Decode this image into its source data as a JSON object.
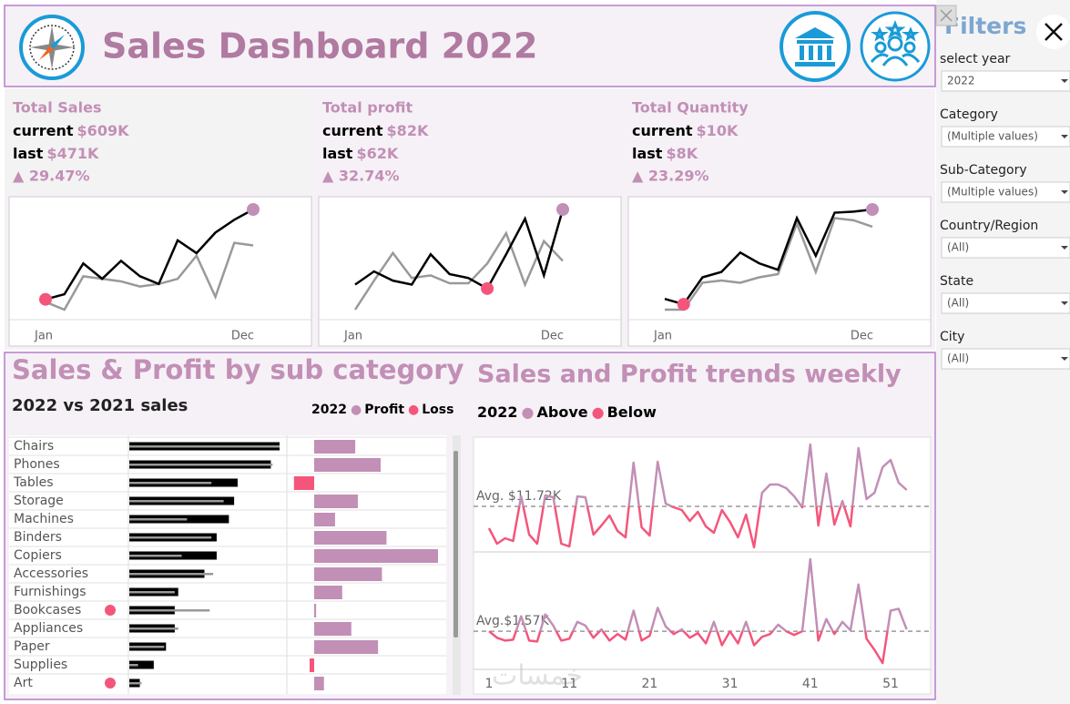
{
  "header": {
    "title": "Sales Dashboard 2022"
  },
  "kpis": [
    {
      "title": "Total Sales",
      "current_label": "current",
      "current": "$609K",
      "last_label": "last",
      "last": "$471K",
      "change": "▲ 29.47%",
      "start": "Jan",
      "end": "Dec",
      "current_values": [
        32,
        34,
        46,
        40,
        47,
        41,
        38,
        55,
        50,
        58,
        63,
        67
      ],
      "last_values": [
        31,
        28,
        41,
        40,
        39,
        37,
        38,
        40,
        49,
        33,
        54,
        53
      ]
    },
    {
      "title": "Total profit",
      "current_label": "current",
      "current": "$82K",
      "last_label": "last",
      "last": "$62K",
      "change": "▲ 32.74%",
      "start": "Jan",
      "end": "Dec",
      "current_values": [
        4.5,
        5.5,
        4.8,
        4.5,
        6.8,
        5.3,
        5.0,
        4.2,
        6.8,
        9.5,
        5.2,
        10.2
      ],
      "last_values": [
        2.6,
        4.8,
        6.9,
        5.0,
        5.2,
        4.6,
        4.6,
        6.1,
        8.4,
        4.5,
        7.8,
        6.3
      ]
    },
    {
      "title": "Total Quantity",
      "current_label": "current",
      "current": "$10K",
      "last_label": "last",
      "last": "$8K",
      "change": "▲ 23.29%",
      "start": "Jan",
      "end": "Dec",
      "current_values": [
        0.55,
        0.5,
        0.75,
        0.8,
        0.98,
        0.88,
        0.82,
        1.3,
        0.95,
        1.35,
        1.36,
        1.38
      ],
      "last_values": [
        0.45,
        0.45,
        0.7,
        0.72,
        0.7,
        0.75,
        0.78,
        1.25,
        0.8,
        1.3,
        1.28,
        1.22
      ]
    }
  ],
  "subcategory": {
    "title": "Sales & Profit by sub category",
    "subtitle": "2022 vs 2021 sales",
    "legend": {
      "year": "2022",
      "profit": "Profit",
      "loss": "Loss"
    },
    "profit_color": "#c28fb6",
    "loss_color": "#f4567b",
    "categories": [
      "Chairs",
      "Phones",
      "Tables",
      "Storage",
      "Machines",
      "Binders",
      "Copiers",
      "Accessories",
      "Furnishings",
      "Bookcases",
      "Appliances",
      "Paper",
      "Supplies",
      "Art"
    ],
    "sales_2022": [
      86,
      81,
      62,
      60,
      57,
      50,
      50,
      43,
      28,
      26,
      26,
      21,
      14,
      6
    ],
    "sales_2021": [
      86,
      82,
      47,
      54,
      33,
      47,
      30,
      48,
      26,
      46,
      28,
      20,
      5,
      7
    ],
    "profit": [
      6.3,
      10.2,
      -3.1,
      6.7,
      3.2,
      11.1,
      19.0,
      10.4,
      4.3,
      0.3,
      5.7,
      9.8,
      -0.7,
      1.5
    ],
    "flag": [
      false,
      false,
      false,
      false,
      false,
      false,
      false,
      false,
      false,
      true,
      false,
      false,
      false,
      true
    ]
  },
  "weekly": {
    "title": "Sales and Profit trends weekly",
    "legend": {
      "year": "2022",
      "above": "Above",
      "below": "Below"
    },
    "above_color": "#c28fb6",
    "below_color": "#f4567b",
    "x": [
      1,
      2,
      3,
      4,
      5,
      6,
      7,
      8,
      9,
      10,
      11,
      12,
      13,
      14,
      15,
      16,
      17,
      18,
      19,
      20,
      21,
      22,
      23,
      24,
      25,
      26,
      27,
      28,
      29,
      30,
      31,
      32,
      33,
      34,
      35,
      36,
      37,
      38,
      39,
      40,
      41,
      42,
      43,
      44,
      45,
      46,
      47,
      48,
      49,
      50,
      51,
      52,
      53
    ],
    "xticks": [
      1,
      11,
      21,
      31,
      41,
      51
    ],
    "sales": [
      9.32,
      7.62,
      8.22,
      7.92,
      12.82,
      8.62,
      7.62,
      12.92,
      12.72,
      7.62,
      7.32,
      12.82,
      12.72,
      8.62,
      9.62,
      10.72,
      9.02,
      8.32,
      16.52,
      9.42,
      8.52,
      16.62,
      12.02,
      11.62,
      11.32,
      10.12,
      11.12,
      9.52,
      8.82,
      11.32,
      10.02,
      8.32,
      10.82,
      7.22,
      13.22,
      14.12,
      14.12,
      13.72,
      12.82,
      11.62,
      18.52,
      9.62,
      15.32,
      9.72,
      12.32,
      9.52,
      18.12,
      12.52,
      13.22,
      16.02,
      16.82,
      14.32,
      13.52
    ],
    "sales_avg": {
      "value": 11.72,
      "label": "Avg. $11.72K"
    },
    "profit": [
      1.57,
      1.43,
      1.37,
      1.39,
      1.89,
      1.37,
      1.35,
      1.93,
      1.69,
      1.37,
      1.41,
      1.77,
      1.69,
      1.43,
      1.61,
      1.37,
      1.51,
      1.39,
      2.01,
      1.37,
      1.47,
      2.07,
      1.67,
      1.51,
      1.61,
      1.43,
      1.53,
      1.31,
      1.77,
      1.27,
      1.57,
      1.31,
      1.77,
      1.27,
      1.45,
      1.51,
      1.71,
      1.57,
      1.49,
      1.57,
      3.11,
      1.37,
      1.83,
      1.51,
      1.77,
      1.59,
      2.57,
      1.41,
      1.17,
      0.89,
      2.01,
      2.05,
      1.61
    ],
    "profit_avg": {
      "value": 1.57,
      "label": "Avg.$1.57K"
    }
  },
  "filters": {
    "title": "Filters",
    "items": [
      {
        "label": "select year",
        "value": "2022"
      },
      {
        "label": "Category",
        "value": "(Multiple values)"
      },
      {
        "label": "Sub-Category",
        "value": "(Multiple values)"
      },
      {
        "label": "Country/Region",
        "value": "(All)"
      },
      {
        "label": "State",
        "value": "(All)"
      },
      {
        "label": "City",
        "value": "(All)"
      }
    ]
  },
  "watermark": "خمسات"
}
